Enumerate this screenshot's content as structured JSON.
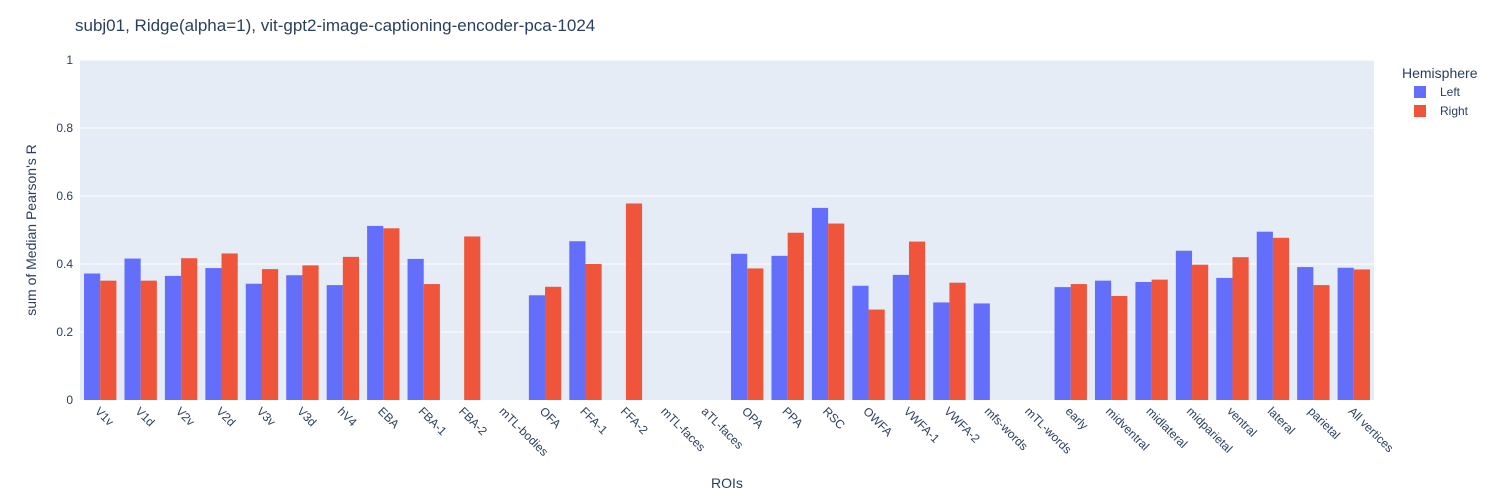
{
  "chart_data": {
    "type": "bar",
    "title": "subj01, Ridge(alpha=1), vit-gpt2-image-captioning-encoder-pca-1024",
    "xlabel": "ROIs",
    "ylabel": "sum of Median Pearson's R",
    "ylim": [
      0,
      1
    ],
    "yticks": [
      0,
      0.2,
      0.4,
      0.6,
      0.8,
      1
    ],
    "ytick_labels": [
      "0",
      "0.2",
      "0.4",
      "0.6",
      "0.8",
      "1"
    ],
    "grid": true,
    "legend": {
      "title": "Hemisphere",
      "position": "top-right"
    },
    "categories": [
      "V1v",
      "V1d",
      "V2v",
      "V2d",
      "V3v",
      "V3d",
      "hV4",
      "EBA",
      "FBA-1",
      "FBA-2",
      "mTL-bodies",
      "OFA",
      "FFA-1",
      "FFA-2",
      "mTL-faces",
      "aTL-faces",
      "OPA",
      "PPA",
      "RSC",
      "OWFA",
      "VWFA-1",
      "VWFA-2",
      "mfs-words",
      "mTL-words",
      "early",
      "midventral",
      "midlateral",
      "midparietal",
      "ventral",
      "lateral",
      "parietal",
      "All vertices"
    ],
    "series": [
      {
        "name": "Left",
        "color": "#636efa",
        "values": [
          0.372,
          0.416,
          0.365,
          0.388,
          0.342,
          0.367,
          0.338,
          0.512,
          0.415,
          null,
          null,
          0.308,
          0.467,
          null,
          null,
          null,
          0.43,
          0.424,
          0.565,
          0.336,
          0.368,
          0.287,
          0.284,
          null,
          0.332,
          0.351,
          0.347,
          0.439,
          0.359,
          0.495,
          0.391,
          0.389
        ]
      },
      {
        "name": "Right",
        "color": "#ef553b",
        "values": [
          0.351,
          0.351,
          0.417,
          0.431,
          0.385,
          0.396,
          0.421,
          0.505,
          0.341,
          0.481,
          null,
          0.333,
          0.4,
          0.578,
          null,
          null,
          0.387,
          0.492,
          0.519,
          0.266,
          0.466,
          0.345,
          null,
          null,
          0.341,
          0.306,
          0.354,
          0.398,
          0.42,
          0.477,
          0.338,
          0.384
        ]
      }
    ]
  }
}
